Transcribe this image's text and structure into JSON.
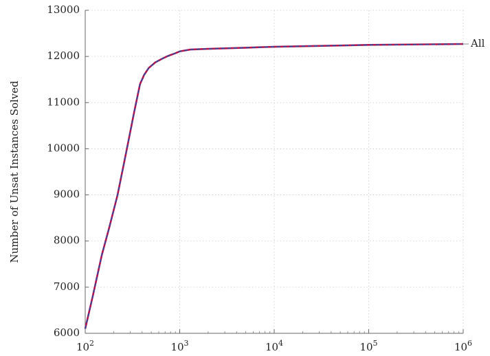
{
  "chart_data": {
    "type": "line",
    "xscale": "log",
    "xlim": [
      100,
      1000000
    ],
    "ylim": [
      6000,
      13000
    ],
    "xlabel": "",
    "ylabel": "Number of Unsat Instances Solved",
    "grid": true,
    "x_ticks": [
      {
        "value": 100,
        "base": "10",
        "exp": "2"
      },
      {
        "value": 1000,
        "base": "10",
        "exp": "3"
      },
      {
        "value": 10000,
        "base": "10",
        "exp": "4"
      },
      {
        "value": 100000,
        "base": "10",
        "exp": "5"
      },
      {
        "value": 1000000,
        "base": "10",
        "exp": "6"
      }
    ],
    "y_ticks": [
      "6000",
      "7000",
      "8000",
      "9000",
      "10000",
      "11000",
      "12000",
      "13000"
    ],
    "series": [
      {
        "name": "All",
        "colors": [
          "#b0124e",
          "#2b4fa3"
        ],
        "x": [
          100,
          120,
          150,
          180,
          220,
          270,
          330,
          380,
          420,
          470,
          550,
          650,
          750,
          900,
          1000,
          1300,
          2000,
          5000,
          10000,
          100000,
          1000000
        ],
        "y": [
          6100,
          6800,
          7700,
          8300,
          9000,
          9900,
          10800,
          11400,
          11600,
          11750,
          11870,
          11950,
          12010,
          12070,
          12110,
          12150,
          12165,
          12190,
          12210,
          12250,
          12270
        ]
      }
    ]
  }
}
